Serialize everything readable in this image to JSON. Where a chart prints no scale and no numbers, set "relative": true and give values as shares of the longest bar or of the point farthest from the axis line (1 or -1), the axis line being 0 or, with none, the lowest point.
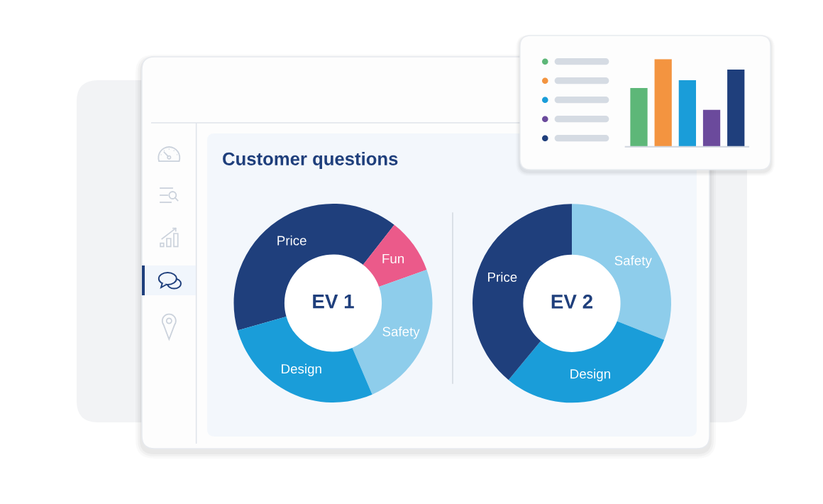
{
  "chart_data": [
    {
      "type": "donut",
      "title": "Customer questions",
      "categories": [
        "Price",
        "Fun",
        "Safety",
        "Design"
      ],
      "values": [
        40,
        9,
        24,
        27
      ],
      "colors": [
        "#1f3f7c",
        "#eb5a8a",
        "#8ecdeb",
        "#1a9dd9"
      ],
      "annotations": [
        "EV 1"
      ]
    },
    {
      "type": "donut",
      "categories": [
        "Safety",
        "Design",
        "Price"
      ],
      "values": [
        31,
        30,
        39
      ],
      "colors": [
        "#8ecdeb",
        "#1a9dd9",
        "#1f3f7c"
      ],
      "annotations": [
        "EV 2"
      ]
    },
    {
      "type": "bar",
      "relative": true,
      "categories": [
        null,
        null,
        null,
        null,
        null
      ],
      "values": [
        0.67,
        1,
        0.76,
        0.42,
        0.88
      ],
      "colors": [
        "#5db778",
        "#f39440",
        "#1a9dd9",
        "#6b4a9c",
        "#1f3f7c"
      ]
    }
  ]
}
